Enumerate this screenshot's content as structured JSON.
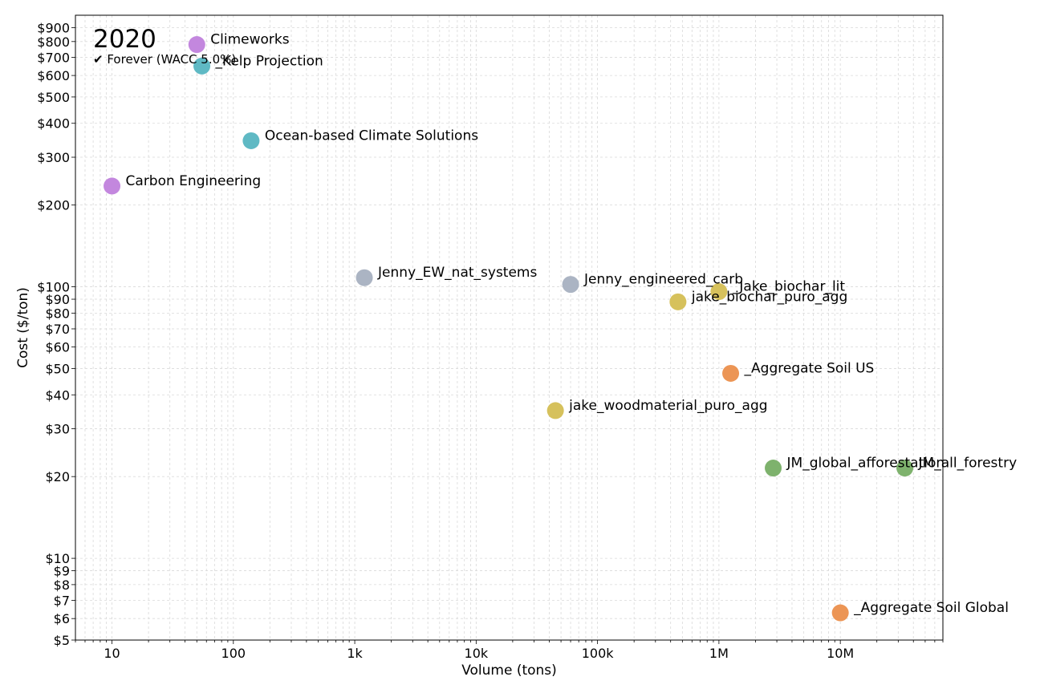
{
  "chart_data": {
    "type": "scatter",
    "title": "2020",
    "subtitle": "✔ Forever (WACC 5.0%)",
    "xlabel": "Volume (tons)",
    "ylabel": "Cost ($/ton)",
    "xscale": "log",
    "yscale": "log",
    "xlim": [
      5,
      70000000
    ],
    "ylim": [
      5,
      1000
    ],
    "grid": true,
    "x_ticks": [
      {
        "value": 10,
        "label": "10"
      },
      {
        "value": 100,
        "label": "100"
      },
      {
        "value": 1000,
        "label": "1k"
      },
      {
        "value": 10000,
        "label": "10k"
      },
      {
        "value": 100000,
        "label": "100k"
      },
      {
        "value": 1000000,
        "label": "1M"
      },
      {
        "value": 10000000,
        "label": "10M"
      }
    ],
    "y_ticks": [
      {
        "value": 5,
        "label": "$5"
      },
      {
        "value": 6,
        "label": "$6"
      },
      {
        "value": 7,
        "label": "$7"
      },
      {
        "value": 8,
        "label": "$8"
      },
      {
        "value": 9,
        "label": "$9"
      },
      {
        "value": 10,
        "label": "$10"
      },
      {
        "value": 20,
        "label": "$20"
      },
      {
        "value": 30,
        "label": "$30"
      },
      {
        "value": 40,
        "label": "$40"
      },
      {
        "value": 50,
        "label": "$50"
      },
      {
        "value": 60,
        "label": "$60"
      },
      {
        "value": 70,
        "label": "$70"
      },
      {
        "value": 80,
        "label": "$80"
      },
      {
        "value": 90,
        "label": "$90"
      },
      {
        "value": 100,
        "label": "$100"
      },
      {
        "value": 200,
        "label": "$200"
      },
      {
        "value": 300,
        "label": "$300"
      },
      {
        "value": 400,
        "label": "$400"
      },
      {
        "value": 500,
        "label": "$500"
      },
      {
        "value": 600,
        "label": "$600"
      },
      {
        "value": 700,
        "label": "$700"
      },
      {
        "value": 800,
        "label": "$800"
      },
      {
        "value": 900,
        "label": "$900"
      }
    ],
    "points": [
      {
        "label": "Climeworks",
        "x": 50,
        "y": 780,
        "color": "#c387de"
      },
      {
        "label": "_Kelp Projection",
        "x": 55,
        "y": 650,
        "color": "#5fb9c4"
      },
      {
        "label": "Ocean-based Climate Solutions",
        "x": 140,
        "y": 345,
        "color": "#5fb9c4"
      },
      {
        "label": "Carbon Engineering",
        "x": 10,
        "y": 235,
        "color": "#c387de"
      },
      {
        "label": "Jenny_EW_nat_systems",
        "x": 1200,
        "y": 108,
        "color": "#abb4c3"
      },
      {
        "label": "Jenny_engineered_carb",
        "x": 60000,
        "y": 102,
        "color": "#abb4c3"
      },
      {
        "label": "_Jake_biochar_lit",
        "x": 1000000,
        "y": 96,
        "color": "#d6c15c"
      },
      {
        "label": "jake_biochar_puro_agg",
        "x": 460000,
        "y": 88,
        "color": "#d6c15c"
      },
      {
        "label": "_Aggregate Soil US",
        "x": 1250000,
        "y": 48,
        "color": "#ec9555"
      },
      {
        "label": "jake_woodmaterial_puro_agg",
        "x": 45000,
        "y": 35,
        "color": "#d6c15c"
      },
      {
        "label": "JM_global_afforestation",
        "x": 2800000,
        "y": 21.5,
        "color": "#7eb26d"
      },
      {
        "label": "JM_all_forestry",
        "x": 34000000,
        "y": 21.5,
        "color": "#7eb26d"
      },
      {
        "label": "_Aggregate Soil Global",
        "x": 10000000,
        "y": 6.3,
        "color": "#ec9555"
      }
    ]
  }
}
